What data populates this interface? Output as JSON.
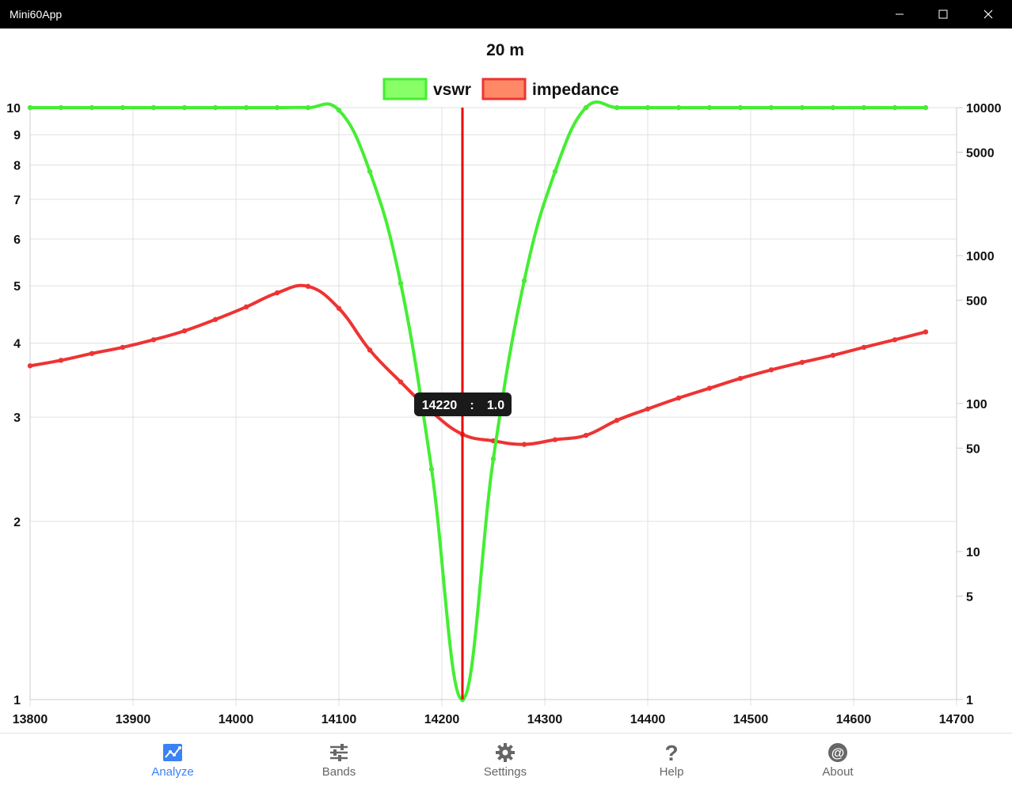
{
  "window": {
    "title": "Mini60App"
  },
  "chart_data": {
    "type": "line",
    "title": "20 m",
    "x": [
      13800,
      13830,
      13860,
      13890,
      13920,
      13950,
      13980,
      14010,
      14040,
      14070,
      14100,
      14130,
      14160,
      14190,
      14220,
      14250,
      14280,
      14310,
      14340,
      14370,
      14400,
      14430,
      14460,
      14490,
      14520,
      14550,
      14580,
      14610,
      14640,
      14670
    ],
    "xlim": [
      13800,
      14700
    ],
    "xticks": [
      "13800",
      "13900",
      "14000",
      "14100",
      "14200",
      "14300",
      "14400",
      "14500",
      "14600",
      "14700"
    ],
    "series": [
      {
        "name": "vswr",
        "axis": "left",
        "color": "#44ee33",
        "fill": "#88ff66",
        "values": [
          10,
          10,
          10,
          10,
          10,
          10,
          10,
          10,
          10,
          10,
          9.9,
          7.8,
          5.05,
          2.45,
          1.0,
          2.55,
          5.1,
          7.8,
          10,
          10,
          10,
          10,
          10,
          10,
          10,
          10,
          10,
          10,
          10,
          10
        ]
      },
      {
        "name": "impedance",
        "axis": "right",
        "color": "#ee3333",
        "fill": "#ff8866",
        "values": [
          180,
          196,
          218,
          240,
          270,
          310,
          370,
          450,
          560,
          620,
          440,
          230,
          140,
          88,
          62,
          56,
          53,
          57,
          61,
          77,
          92,
          109,
          127,
          148,
          169,
          190,
          212,
          240,
          270,
          305
        ]
      }
    ],
    "y_left": {
      "scale": "log",
      "min": 1,
      "max": 10,
      "ticks": [
        "1",
        "2",
        "3",
        "4",
        "5",
        "6",
        "7",
        "8",
        "9",
        "10"
      ]
    },
    "y_right": {
      "scale": "log",
      "min": 1,
      "max": 10000,
      "ticks": [
        "1",
        "5",
        "10",
        "50",
        "100",
        "500",
        "1000",
        "5000",
        "10000"
      ]
    },
    "marker": {
      "x": 14220,
      "color": "#ee0000"
    },
    "tooltip": {
      "freq": "14220",
      "sep": ":",
      "value": "1.0"
    },
    "legend_position": "top",
    "grid": true
  },
  "nav": [
    {
      "label": "Analyze",
      "icon": "chart-icon",
      "active": true
    },
    {
      "label": "Bands",
      "icon": "sliders-icon",
      "active": false
    },
    {
      "label": "Settings",
      "icon": "gear-icon",
      "active": false
    },
    {
      "label": "Help",
      "icon": "help-icon",
      "active": false
    },
    {
      "label": "About",
      "icon": "at-icon",
      "active": false
    }
  ]
}
